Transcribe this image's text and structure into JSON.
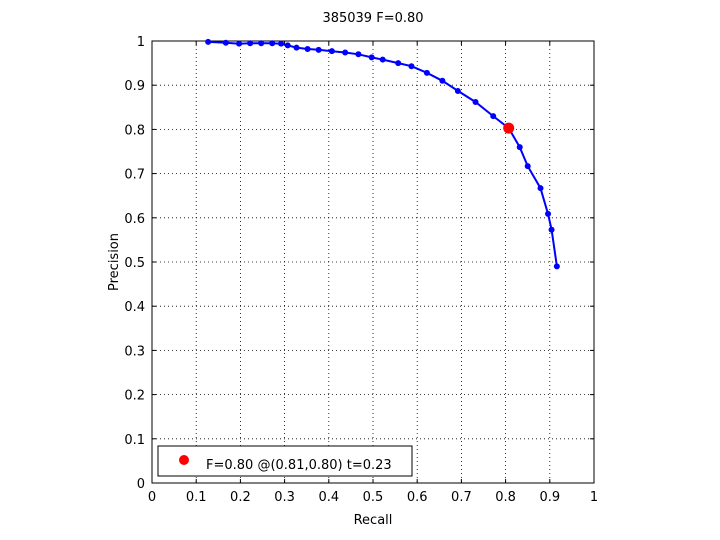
{
  "chart_data": {
    "type": "line",
    "title": "385039 F=0.80",
    "xlabel": "Recall",
    "ylabel": "Precision",
    "xlim": [
      0,
      1
    ],
    "ylim": [
      0,
      1
    ],
    "xticks": [
      "0",
      "0.1",
      "0.2",
      "0.3",
      "0.4",
      "0.5",
      "0.6",
      "0.7",
      "0.8",
      "0.9",
      "1"
    ],
    "yticks": [
      "0",
      "0.1",
      "0.2",
      "0.3",
      "0.4",
      "0.5",
      "0.6",
      "0.7",
      "0.8",
      "0.9",
      "1"
    ],
    "grid": true,
    "legend_position": "bottom-left",
    "series": [
      {
        "color": "#0000ff",
        "x": [
          0.127,
          0.167,
          0.197,
          0.222,
          0.247,
          0.272,
          0.292,
          0.307,
          0.327,
          0.352,
          0.377,
          0.407,
          0.437,
          0.467,
          0.497,
          0.522,
          0.557,
          0.587,
          0.622,
          0.657,
          0.692,
          0.732,
          0.772,
          0.807,
          0.832,
          0.85,
          0.879,
          0.896,
          0.904,
          0.916
        ],
        "y": [
          0.998,
          0.996,
          0.994,
          0.995,
          0.995,
          0.995,
          0.994,
          0.99,
          0.985,
          0.982,
          0.98,
          0.977,
          0.974,
          0.97,
          0.963,
          0.958,
          0.95,
          0.943,
          0.928,
          0.91,
          0.887,
          0.862,
          0.83,
          0.803,
          0.76,
          0.717,
          0.667,
          0.609,
          0.573,
          0.49
        ]
      }
    ],
    "highlight": {
      "x": 0.807,
      "y": 0.803,
      "color": "#ff0000"
    },
    "legend_text": "F=0.80 @(0.81,0.80) t=0.23"
  }
}
